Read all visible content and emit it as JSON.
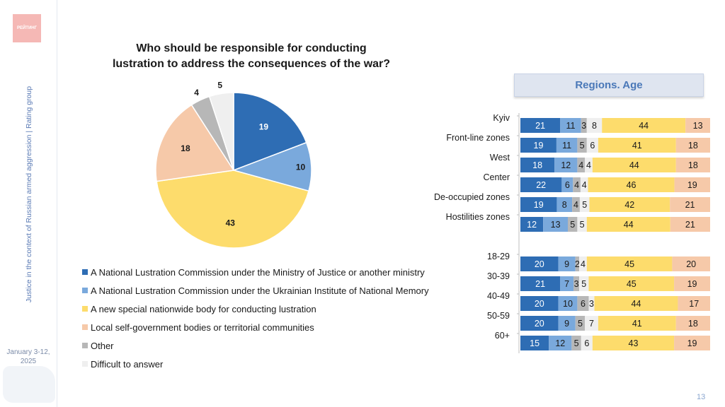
{
  "sidebar": {
    "logo_text": "РЕЙТИНГ",
    "vertical_title": "Justice in the context of Russian armed aggression | Rating group",
    "date": "January 3-12, 2025"
  },
  "page_number": "13",
  "chart_data": [
    {
      "type": "pie",
      "title": "Who should be responsible for conducting lustration to address the consequences of the war?",
      "title_line1": "Who should be responsible for conducting",
      "title_line2": "lustration to address the consequences of the war?",
      "categories": [
        "A National Lustration Commission under the Ministry of Justice or another ministry",
        "A National Lustration Commission under the Ukrainian Institute of National Memory",
        "A new special nationwide body for conducting lustration",
        "Local self-government bodies or territorial communities",
        "Other",
        "Difficult to answer"
      ],
      "values": [
        19,
        10,
        43,
        18,
        4,
        5
      ],
      "colors": [
        "#2e6db4",
        "#7aa9dc",
        "#fddc6c",
        "#f6c9a9",
        "#b7b7b7",
        "#efefef"
      ],
      "legend_placement": "bottom"
    },
    {
      "type": "stacked-bar",
      "title": "Regions. Age",
      "categories": [
        "Kyiv",
        "Front-line zones",
        "West",
        "Center",
        "De-occupied zones",
        "Hostilities zones",
        "18-29",
        "30-39",
        "40-49",
        "50-59",
        "60+"
      ],
      "series": [
        {
          "name": "A National Lustration Commission under the Ministry of Justice or another ministry",
          "values": [
            21,
            19,
            18,
            22,
            19,
            12,
            20,
            21,
            20,
            20,
            15
          ]
        },
        {
          "name": "A National Lustration Commission under the Ukrainian Institute of National Memory",
          "values": [
            11,
            11,
            12,
            6,
            8,
            13,
            9,
            7,
            10,
            9,
            12
          ]
        },
        {
          "name": "Other",
          "values": [
            3,
            5,
            4,
            4,
            4,
            5,
            2,
            3,
            6,
            5,
            5
          ]
        },
        {
          "name": "Difficult to answer",
          "values": [
            8,
            6,
            4,
            4,
            5,
            5,
            4,
            5,
            3,
            7,
            6
          ]
        },
        {
          "name": "A new special nationwide body for conducting lustration",
          "values": [
            44,
            41,
            44,
            46,
            42,
            44,
            45,
            45,
            44,
            41,
            43
          ]
        },
        {
          "name": "Local self-government bodies or territorial communities",
          "values": [
            13,
            18,
            18,
            19,
            21,
            21,
            20,
            19,
            17,
            18,
            19
          ]
        }
      ],
      "colors": [
        "#2e6db4",
        "#7aa9dc",
        "#b7b7b7",
        "#efefef",
        "#fddc6c",
        "#f6c9a9"
      ],
      "xlim": [
        0,
        100
      ]
    }
  ]
}
